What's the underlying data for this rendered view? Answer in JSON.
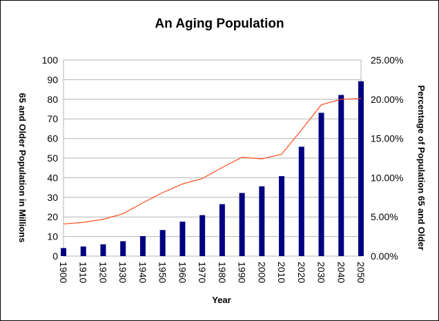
{
  "chart_data": {
    "type": "bar",
    "title": "An Aging Population",
    "xlabel": "Year",
    "ylabel": "65 and Older Population in Millions",
    "y2label": "Percentage of Population 65 and Older",
    "categories": [
      "1900",
      "1910",
      "1920",
      "1930",
      "1940",
      "1950",
      "1960",
      "1970",
      "1980",
      "1990",
      "2000",
      "2010",
      "2020",
      "2030",
      "2040",
      "2050"
    ],
    "ylim": [
      0,
      100
    ],
    "yticks": [
      0,
      10,
      20,
      30,
      40,
      50,
      60,
      70,
      80,
      90,
      100
    ],
    "ytick_labels": [
      "0",
      "10",
      "20",
      "30",
      "40",
      "50",
      "60",
      "70",
      "80",
      "90",
      "100"
    ],
    "y2lim": [
      0,
      0.25
    ],
    "y2ticks": [
      0,
      0.05,
      0.1,
      0.15,
      0.2,
      0.25
    ],
    "y2tick_labels": [
      "0.00%",
      "5.00%",
      "10.00%",
      "15.00%",
      "20.00%",
      "25.00%"
    ],
    "grid": true,
    "legend": "none",
    "series": [
      {
        "type": "bar",
        "axis": "left",
        "color": "#000080",
        "values": [
          4.1,
          4.9,
          6.0,
          7.6,
          10.2,
          13.3,
          17.6,
          20.9,
          26.5,
          32.2,
          35.6,
          40.8,
          55.8,
          73.1,
          82.2,
          89.2
        ]
      },
      {
        "type": "line",
        "axis": "right",
        "color": "#ff4a1a",
        "values": [
          0.041,
          0.043,
          0.047,
          0.054,
          0.068,
          0.081,
          0.092,
          0.099,
          0.113,
          0.126,
          0.124,
          0.13,
          0.161,
          0.193,
          0.2,
          0.201
        ]
      }
    ]
  }
}
